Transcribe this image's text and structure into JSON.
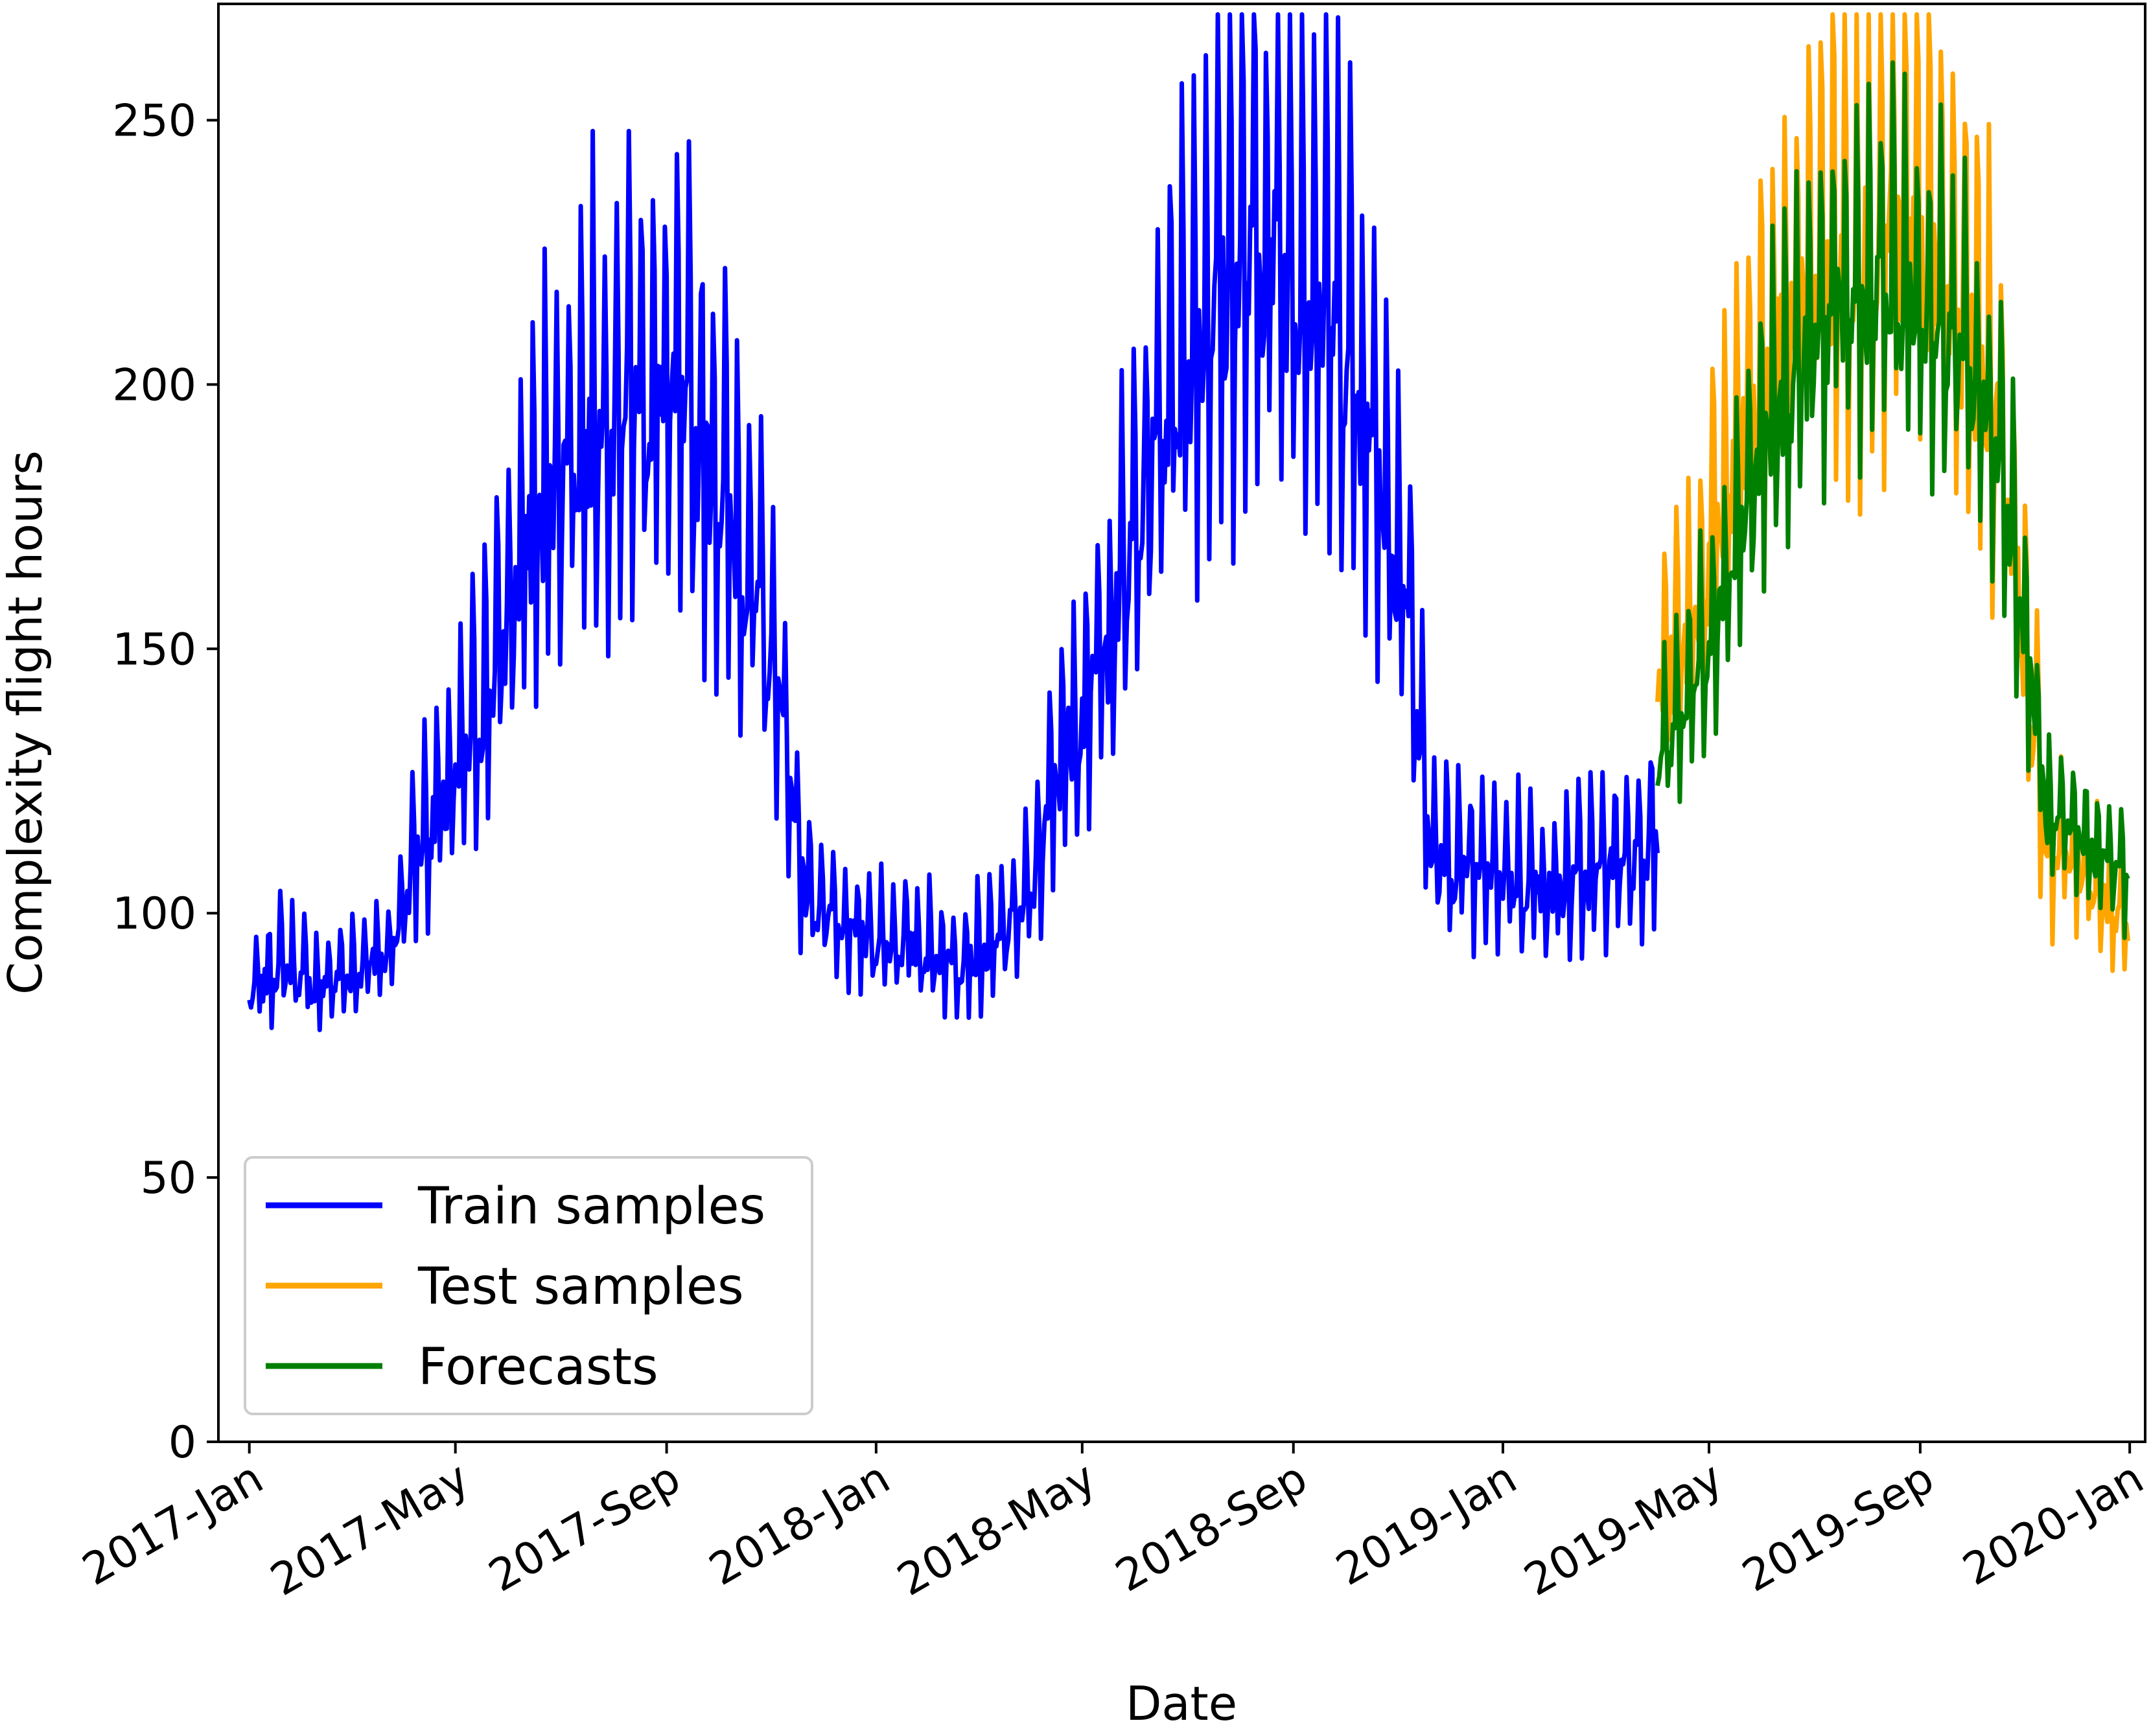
{
  "chart_data": {
    "type": "line",
    "title": "",
    "xlabel": "Date",
    "ylabel": "Complexity flight hours",
    "xlim": [
      "2016-12-14",
      "2020-01-10"
    ],
    "ylim": [
      0,
      272
    ],
    "x_ticks": [
      {
        "date": "2017-01-01",
        "label": "2017-Jan"
      },
      {
        "date": "2017-05-01",
        "label": "2017-May"
      },
      {
        "date": "2017-09-01",
        "label": "2017-Sep"
      },
      {
        "date": "2018-01-01",
        "label": "2018-Jan"
      },
      {
        "date": "2018-05-01",
        "label": "2018-May"
      },
      {
        "date": "2018-09-01",
        "label": "2018-Sep"
      },
      {
        "date": "2019-01-01",
        "label": "2019-Jan"
      },
      {
        "date": "2019-05-01",
        "label": "2019-May"
      },
      {
        "date": "2019-09-01",
        "label": "2019-Sep"
      },
      {
        "date": "2020-01-01",
        "label": "2020-Jan"
      }
    ],
    "y_ticks": [
      0,
      50,
      100,
      150,
      200,
      250
    ],
    "grid": false,
    "legend": {
      "position": "lower-left"
    },
    "series": [
      {
        "name": "Train samples",
        "color": "#0000ff",
        "start": "2017-01-01",
        "end": "2019-04-01",
        "points": [
          [
            "2017-01-01",
            83
          ],
          [
            "2017-01-20",
            90
          ],
          [
            "2017-02-10",
            85
          ],
          [
            "2017-03-01",
            88
          ],
          [
            "2017-03-25",
            92
          ],
          [
            "2017-04-10",
            112
          ],
          [
            "2017-05-01",
            122
          ],
          [
            "2017-05-25",
            145
          ],
          [
            "2017-06-15",
            170
          ],
          [
            "2017-07-05",
            183
          ],
          [
            "2017-07-25",
            190
          ],
          [
            "2017-08-15",
            195
          ],
          [
            "2017-09-05",
            192
          ],
          [
            "2017-09-25",
            183
          ],
          [
            "2017-10-15",
            165
          ],
          [
            "2017-11-05",
            140
          ],
          [
            "2017-11-20",
            104
          ],
          [
            "2017-12-10",
            95
          ],
          [
            "2018-01-01",
            94
          ],
          [
            "2018-01-20",
            93
          ],
          [
            "2018-02-15",
            90
          ],
          [
            "2018-03-10",
            92
          ],
          [
            "2018-04-01",
            102
          ],
          [
            "2018-04-20",
            130
          ],
          [
            "2018-05-10",
            142
          ],
          [
            "2018-06-01",
            168
          ],
          [
            "2018-06-20",
            195
          ],
          [
            "2018-07-10",
            208
          ],
          [
            "2018-08-01",
            218
          ],
          [
            "2018-08-20",
            222
          ],
          [
            "2018-09-10",
            216
          ],
          [
            "2018-10-01",
            205
          ],
          [
            "2018-10-20",
            182
          ],
          [
            "2018-11-05",
            160
          ],
          [
            "2018-11-20",
            110
          ],
          [
            "2018-12-10",
            106
          ],
          [
            "2019-01-01",
            106
          ],
          [
            "2019-02-01",
            103
          ],
          [
            "2019-03-01",
            107
          ],
          [
            "2019-04-01",
            113
          ]
        ]
      },
      {
        "name": "Test samples",
        "color": "#ffa500",
        "start": "2019-04-01",
        "end": "2019-12-31",
        "points": [
          [
            "2019-04-01",
            140
          ],
          [
            "2019-04-20",
            150
          ],
          [
            "2019-05-10",
            175
          ],
          [
            "2019-06-01",
            195
          ],
          [
            "2019-06-20",
            210
          ],
          [
            "2019-07-10",
            220
          ],
          [
            "2019-08-01",
            225
          ],
          [
            "2019-08-20",
            224
          ],
          [
            "2019-09-10",
            218
          ],
          [
            "2019-10-01",
            205
          ],
          [
            "2019-10-20",
            185
          ],
          [
            "2019-11-05",
            135
          ],
          [
            "2019-11-15",
            110
          ],
          [
            "2019-12-05",
            108
          ],
          [
            "2019-12-31",
            95
          ]
        ]
      },
      {
        "name": "Forecasts",
        "color": "#008000",
        "start": "2019-04-01",
        "end": "2019-12-31",
        "points": [
          [
            "2019-04-01",
            128
          ],
          [
            "2019-04-20",
            140
          ],
          [
            "2019-05-10",
            160
          ],
          [
            "2019-06-01",
            185
          ],
          [
            "2019-06-20",
            200
          ],
          [
            "2019-07-10",
            210
          ],
          [
            "2019-08-01",
            215
          ],
          [
            "2019-08-20",
            214
          ],
          [
            "2019-09-10",
            210
          ],
          [
            "2019-10-01",
            198
          ],
          [
            "2019-10-20",
            182
          ],
          [
            "2019-11-05",
            140
          ],
          [
            "2019-11-15",
            115
          ],
          [
            "2019-12-05",
            113
          ],
          [
            "2019-12-31",
            105
          ]
        ]
      }
    ]
  }
}
